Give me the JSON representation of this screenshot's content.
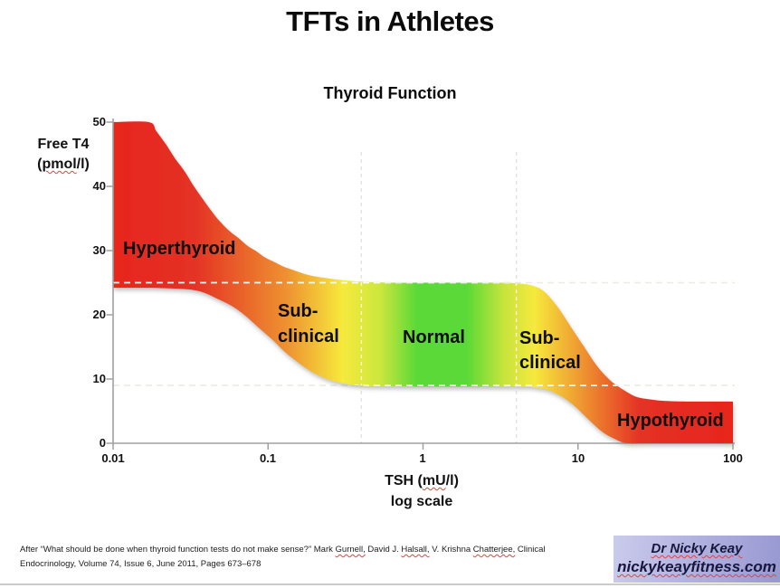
{
  "title": "TFTs in Athletes",
  "chart": {
    "subtitle": "Thyroid Function",
    "y_axis": {
      "title1": "Free T4",
      "t2_pre": "(",
      "t2_word": "pmol",
      "t2_post": "/l)",
      "ticks": [
        "50",
        "40",
        "30",
        "20",
        "10",
        "0"
      ]
    },
    "x_axis": {
      "t_pre": "TSH (",
      "t_word": "mU",
      "t_post": "/l)",
      "subtitle": "log scale",
      "ticks": [
        "0.01",
        "0.1",
        "1",
        "10",
        "100"
      ]
    },
    "zones": {
      "hyper": "Hyperthyroid",
      "sub_l1": "Sub-",
      "sub_l2": "clinical",
      "normal": "Normal",
      "sub_r1": "Sub-",
      "sub_r2": "clinical",
      "hypo": "Hypothyroid"
    }
  },
  "chart_data": {
    "type": "area",
    "title": "Thyroid Function",
    "xlabel": "TSH (mU/l), log scale",
    "ylabel": "Free T4 (pmol/l)",
    "x_scale": "log",
    "xlim": [
      0.01,
      100
    ],
    "ylim": [
      0,
      50
    ],
    "x_ticks": [
      0.01,
      0.1,
      1,
      10,
      100
    ],
    "y_ticks": [
      0,
      10,
      20,
      30,
      40,
      50
    ],
    "normal_range": {
      "ft4": [
        9,
        25
      ],
      "tsh": [
        0.4,
        4
      ]
    },
    "zones": [
      {
        "label": "Hyperthyroid",
        "color": "#e7261e"
      },
      {
        "label": "Sub-clinical",
        "color": "#f6e93c"
      },
      {
        "label": "Normal",
        "color": "#5ad937"
      },
      {
        "label": "Sub-clinical",
        "color": "#f6e93c"
      },
      {
        "label": "Hypothyroid",
        "color": "#e7261e"
      }
    ],
    "band": {
      "upper_edge": [
        [
          0.01,
          50
        ],
        [
          0.017,
          50
        ],
        [
          0.019,
          48.6
        ],
        [
          0.022,
          46.5
        ],
        [
          0.025,
          44.4
        ],
        [
          0.029,
          42.3
        ],
        [
          0.033,
          40.1
        ],
        [
          0.038,
          38.0
        ],
        [
          0.043,
          36.2
        ],
        [
          0.049,
          34.5
        ],
        [
          0.056,
          33.1
        ],
        [
          0.064,
          32.0
        ],
        [
          0.074,
          30.7
        ],
        [
          0.084,
          29.9
        ],
        [
          0.096,
          28.9
        ],
        [
          0.11,
          28.2
        ],
        [
          0.126,
          27.5
        ],
        [
          0.144,
          27.0
        ],
        [
          0.165,
          26.5
        ],
        [
          0.19,
          26.1
        ],
        [
          0.24,
          25.7
        ],
        [
          0.3,
          25.4
        ],
        [
          0.4,
          25.15
        ],
        [
          0.6,
          25.0
        ],
        [
          1,
          25.0
        ],
        [
          2,
          25.0
        ],
        [
          3,
          25.0
        ],
        [
          4,
          24.9
        ],
        [
          5,
          24.6
        ],
        [
          6,
          23.7
        ],
        [
          7.3,
          21.4
        ],
        [
          8.9,
          18.3
        ],
        [
          10.9,
          15.1
        ],
        [
          13.3,
          12.0
        ],
        [
          16.3,
          9.7
        ],
        [
          20,
          8.2
        ],
        [
          24,
          7.2
        ],
        [
          30,
          6.8
        ],
        [
          36,
          6.6
        ],
        [
          50,
          6.5
        ],
        [
          100,
          6.5
        ]
      ],
      "lower_edge": [
        [
          0.01,
          24.2
        ],
        [
          0.016,
          24.2
        ],
        [
          0.024,
          24.1
        ],
        [
          0.032,
          23.9
        ],
        [
          0.039,
          23.4
        ],
        [
          0.047,
          22.5
        ],
        [
          0.058,
          21.4
        ],
        [
          0.071,
          19.9
        ],
        [
          0.087,
          18.0
        ],
        [
          0.107,
          16.1
        ],
        [
          0.13,
          14.1
        ],
        [
          0.16,
          12.4
        ],
        [
          0.195,
          11.0
        ],
        [
          0.24,
          10.0
        ],
        [
          0.31,
          9.3
        ],
        [
          0.41,
          8.95
        ],
        [
          0.6,
          8.85
        ],
        [
          1,
          8.8
        ],
        [
          2,
          8.8
        ],
        [
          3,
          8.8
        ],
        [
          4.6,
          8.8
        ],
        [
          5.2,
          8.7
        ],
        [
          6.4,
          8.3
        ],
        [
          7.8,
          7.3
        ],
        [
          9.5,
          5.8
        ],
        [
          11.7,
          3.7
        ],
        [
          14.3,
          1.8
        ],
        [
          17.5,
          0.6
        ],
        [
          20.8,
          0
        ],
        [
          30,
          0
        ],
        [
          100,
          0
        ]
      ]
    },
    "gradient_stops": [
      [
        0,
        "#e7261e"
      ],
      [
        0.13,
        "#e43125"
      ],
      [
        0.28,
        "#ee9130"
      ],
      [
        0.37,
        "#f6e93c"
      ],
      [
        0.43,
        "#cde73d"
      ],
      [
        0.49,
        "#5ad937"
      ],
      [
        0.57,
        "#5ad937"
      ],
      [
        0.63,
        "#c6e43c"
      ],
      [
        0.68,
        "#f6e93c"
      ],
      [
        0.76,
        "#ee9130"
      ],
      [
        0.85,
        "#e43125"
      ],
      [
        1,
        "#e7261e"
      ]
    ],
    "legend": "none",
    "grid": "dashed reference lines at FT4 9 and 25, TSH 0.4 and 4"
  },
  "citation": {
    "l1s0": "After “What should be done when thyroid function tests do not make sense?” Mark ",
    "l1s1": "Gurnell,",
    "l1s2": " David J. ",
    "l1s3": "Halsall,",
    "l1s4": " V. Krishna ",
    "l1s5": "Chatterjee,",
    "l1s6": " Clinical",
    "line2": "Endocrinology, Volume 74, Issue 6, June 2011, Pages 673–678"
  },
  "badge": {
    "line1": "Dr Nicky Keay",
    "line2": "nickykeayfitness.com"
  }
}
